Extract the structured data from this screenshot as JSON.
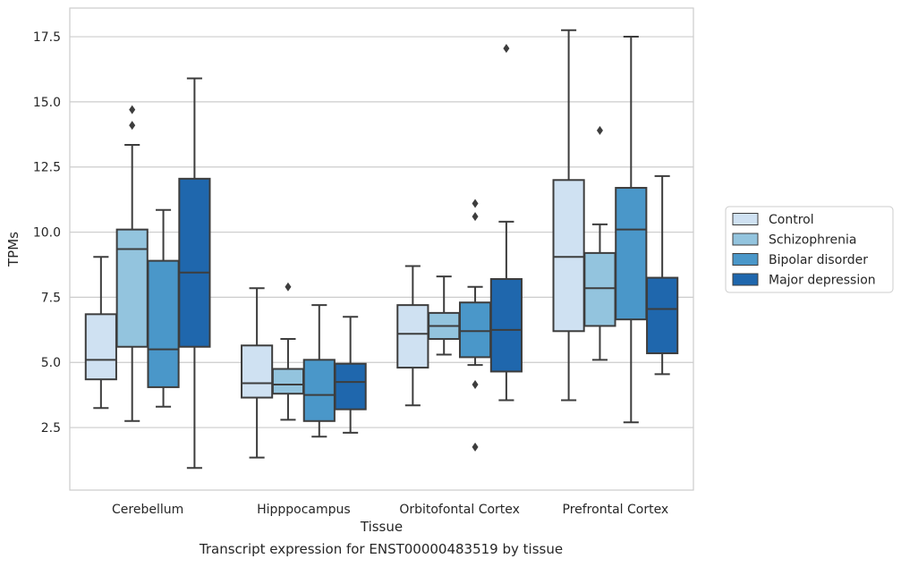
{
  "caption": "Transcript expression for ENST00000483519 by tissue",
  "chart_data": {
    "type": "box",
    "xlabel": "Tissue",
    "ylabel": "TPMs",
    "categories": [
      "Cerebellum",
      "Hipppocampus",
      "Orbitofontal Cortex",
      "Prefrontal Cortex"
    ],
    "ylim": [
      0.1,
      18.6
    ],
    "yticks": [
      2.5,
      5.0,
      7.5,
      10.0,
      12.5,
      15.0,
      17.5
    ],
    "ytick_labels": [
      "2.5",
      "5.0",
      "7.5",
      "10.0",
      "12.5",
      "15.0",
      "17.5"
    ],
    "grid": "horizontal",
    "legend": {
      "position": "right",
      "entries": [
        "Control",
        "Schizophrenia",
        "Bipolar disorder",
        "Major depression"
      ]
    },
    "series_colors": [
      "#cfe1f2",
      "#93c4de",
      "#4a97c9",
      "#1f67ad"
    ],
    "series": [
      {
        "name": "Control",
        "boxes": [
          {
            "whislo": 3.25,
            "q1": 4.35,
            "med": 5.1,
            "q3": 6.85,
            "whishi": 9.05,
            "fliers": []
          },
          {
            "whislo": 1.35,
            "q1": 3.65,
            "med": 4.2,
            "q3": 5.65,
            "whishi": 7.85,
            "fliers": []
          },
          {
            "whislo": 3.35,
            "q1": 4.8,
            "med": 6.1,
            "q3": 7.2,
            "whishi": 8.7,
            "fliers": []
          },
          {
            "whislo": 3.55,
            "q1": 6.2,
            "med": 9.05,
            "q3": 12.0,
            "whishi": 17.75,
            "fliers": []
          }
        ]
      },
      {
        "name": "Schizophrenia",
        "boxes": [
          {
            "whislo": 2.75,
            "q1": 5.6,
            "med": 9.35,
            "q3": 10.1,
            "whishi": 13.35,
            "fliers": [
              14.1,
              14.7
            ]
          },
          {
            "whislo": 2.8,
            "q1": 3.8,
            "med": 4.15,
            "q3": 4.75,
            "whishi": 5.9,
            "fliers": [
              7.9
            ]
          },
          {
            "whislo": 5.3,
            "q1": 5.9,
            "med": 6.4,
            "q3": 6.9,
            "whishi": 8.3,
            "fliers": []
          },
          {
            "whislo": 5.1,
            "q1": 6.4,
            "med": 7.85,
            "q3": 9.2,
            "whishi": 10.3,
            "fliers": [
              13.9
            ]
          }
        ]
      },
      {
        "name": "Bipolar disorder",
        "boxes": [
          {
            "whislo": 3.3,
            "q1": 4.05,
            "med": 5.5,
            "q3": 8.9,
            "whishi": 10.85,
            "fliers": []
          },
          {
            "whislo": 2.15,
            "q1": 2.75,
            "med": 3.75,
            "q3": 5.1,
            "whishi": 7.2,
            "fliers": []
          },
          {
            "whislo": 4.9,
            "q1": 5.2,
            "med": 6.2,
            "q3": 7.3,
            "whishi": 7.9,
            "fliers": [
              4.15,
              1.75,
              10.6,
              11.1
            ]
          },
          {
            "whislo": 2.7,
            "q1": 6.65,
            "med": 10.1,
            "q3": 11.7,
            "whishi": 17.5,
            "fliers": []
          }
        ]
      },
      {
        "name": "Major depression",
        "boxes": [
          {
            "whislo": 0.95,
            "q1": 5.6,
            "med": 8.45,
            "q3": 12.05,
            "whishi": 15.9,
            "fliers": []
          },
          {
            "whislo": 2.3,
            "q1": 3.2,
            "med": 4.25,
            "q3": 4.95,
            "whishi": 6.75,
            "fliers": []
          },
          {
            "whislo": 3.55,
            "q1": 4.65,
            "med": 6.25,
            "q3": 8.2,
            "whishi": 10.4,
            "fliers": [
              17.05
            ]
          },
          {
            "whislo": 4.55,
            "q1": 5.35,
            "med": 7.05,
            "q3": 8.25,
            "whishi": 12.15,
            "fliers": []
          }
        ]
      }
    ]
  }
}
